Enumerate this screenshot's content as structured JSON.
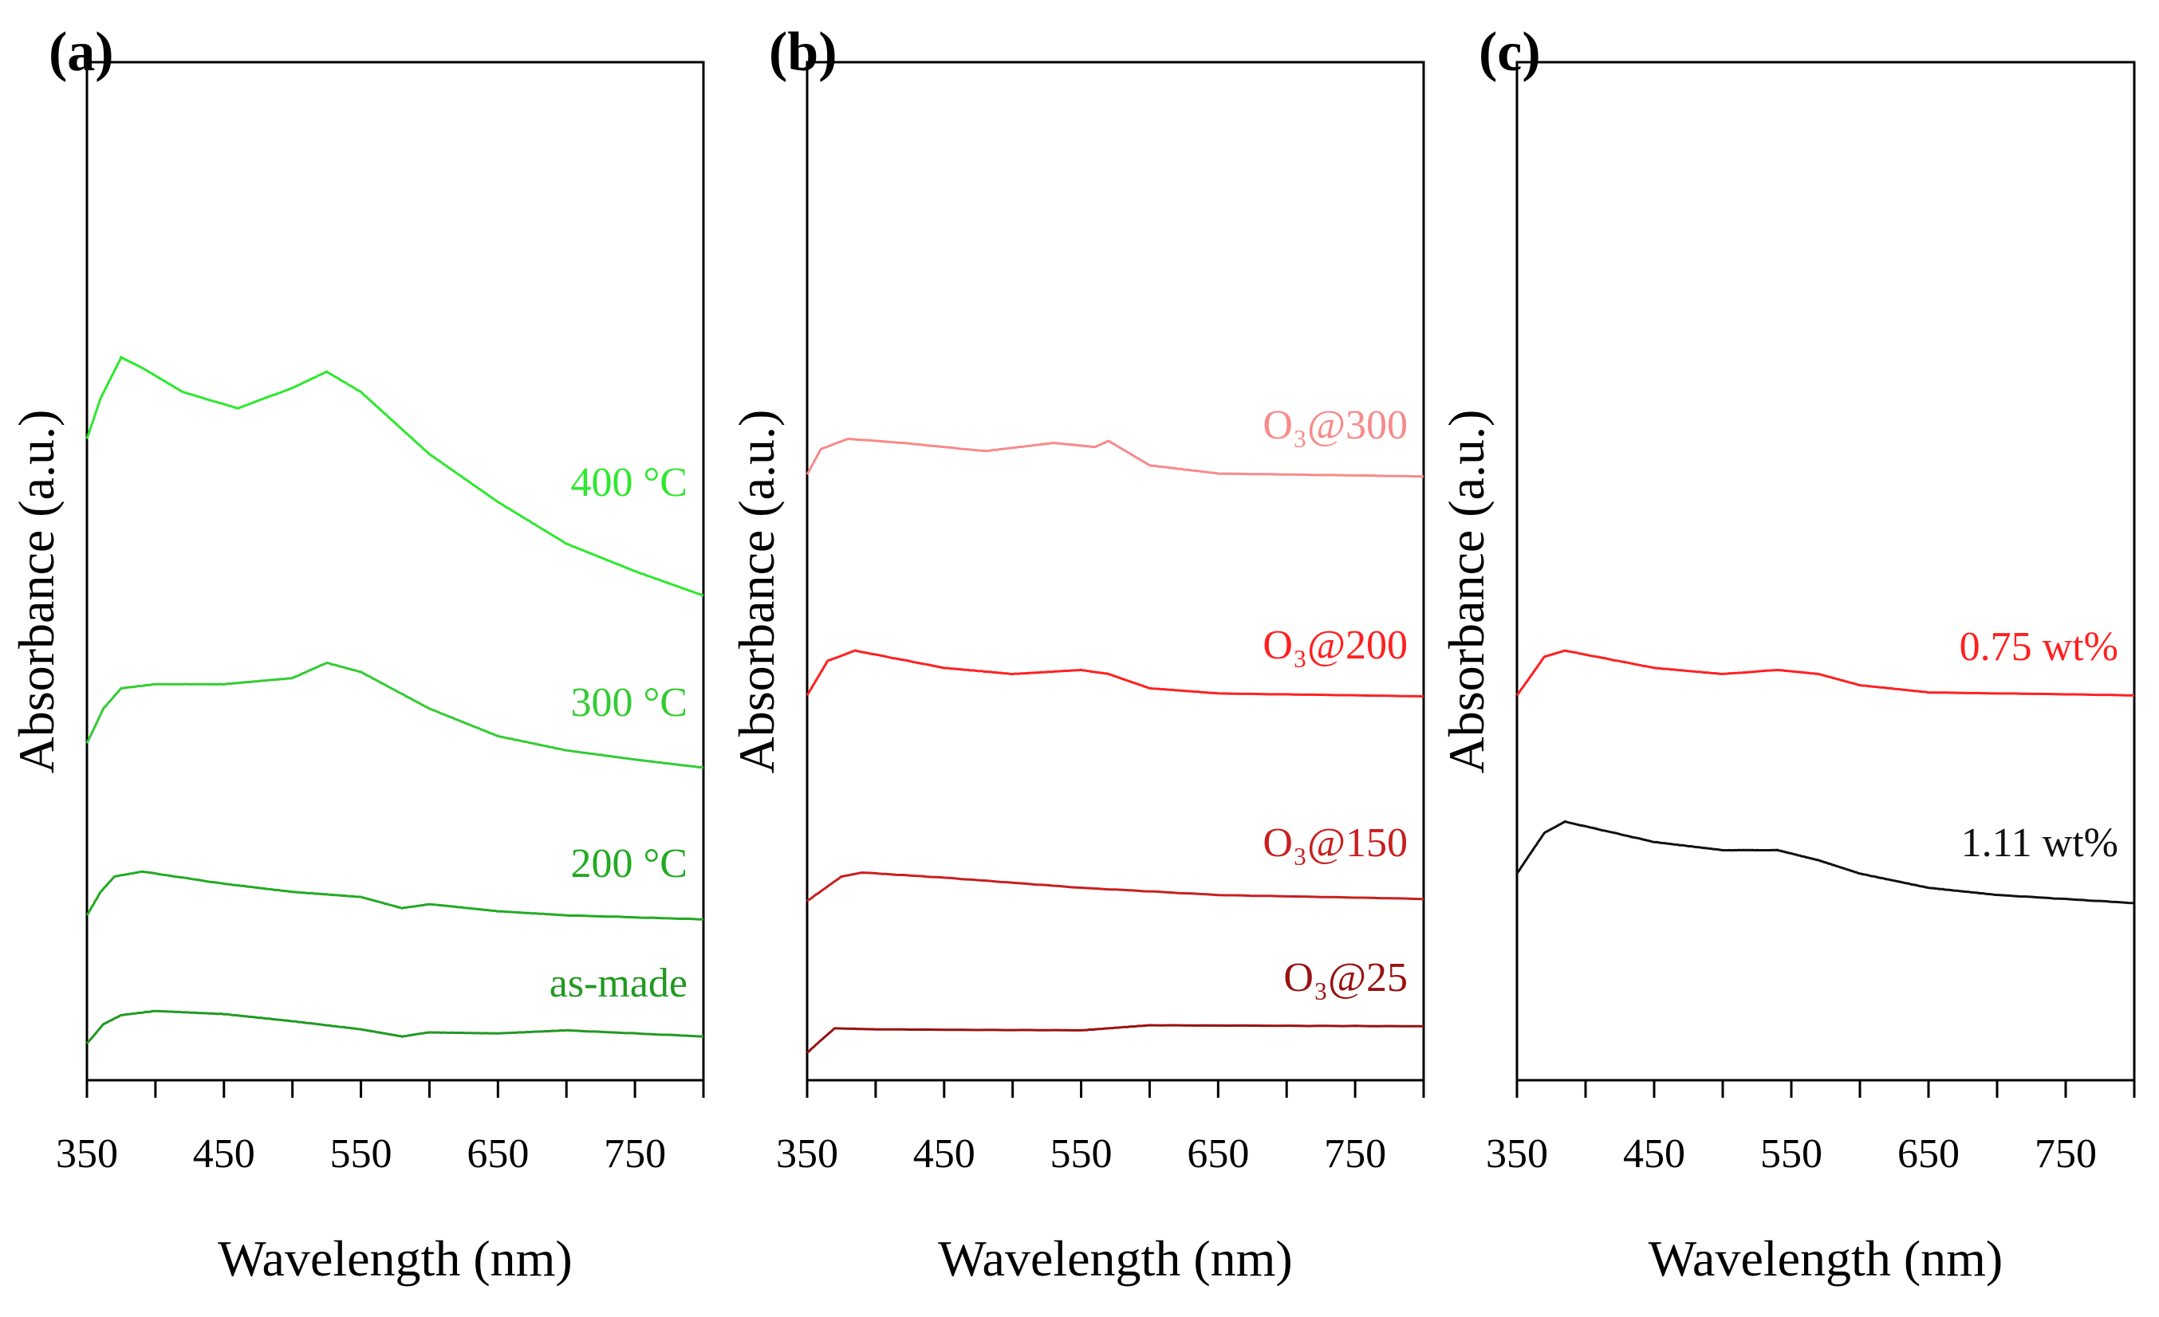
{
  "chart_data": [
    {
      "type": "line",
      "panel_label": "(a)",
      "xlabel": "Wavelength (nm)",
      "ylabel": "Absorbance (a.u.)",
      "xlim": [
        350,
        800
      ],
      "ylim": [
        0,
        100
      ],
      "xticks": [
        350,
        450,
        550,
        650,
        750
      ],
      "yticks_shown": false,
      "series": [
        {
          "name": "400 °C",
          "color": "#2ee82e",
          "x": [
            350,
            360,
            375,
            390,
            420,
            460,
            500,
            525,
            550,
            600,
            650,
            700,
            750,
            800
          ],
          "y": [
            63,
            67,
            71,
            70,
            67.6,
            66,
            68,
            69.6,
            67.6,
            61.5,
            56.8,
            52.7,
            50,
            47.6
          ]
        },
        {
          "name": "300 °C",
          "color": "#33cc33",
          "x": [
            350,
            362,
            375,
            400,
            450,
            500,
            525,
            550,
            600,
            650,
            700,
            750,
            800
          ],
          "y": [
            33.1,
            36.5,
            38.5,
            38.9,
            38.9,
            39.5,
            41,
            40.1,
            36.5,
            33.8,
            32.4,
            31.5,
            30.7
          ]
        },
        {
          "name": "200 °C",
          "color": "#22aa22",
          "x": [
            350,
            360,
            370,
            390,
            450,
            500,
            550,
            580,
            600,
            650,
            700,
            800
          ],
          "y": [
            16.2,
            18.5,
            20,
            20.5,
            19.3,
            18.5,
            18,
            16.9,
            17.3,
            16.6,
            16.2,
            15.8
          ]
        },
        {
          "name": "as-made",
          "color": "#229922",
          "x": [
            350,
            362,
            375,
            400,
            450,
            500,
            550,
            580,
            600,
            650,
            700,
            800
          ],
          "y": [
            3.6,
            5.5,
            6.4,
            6.8,
            6.5,
            5.8,
            5,
            4.3,
            4.7,
            4.6,
            4.9,
            4.3
          ]
        }
      ]
    },
    {
      "type": "line",
      "panel_label": "(b)",
      "xlabel": "Wavelength (nm)",
      "ylabel": "Absorbance (a.u.)",
      "xlim": [
        350,
        800
      ],
      "ylim": [
        0,
        100
      ],
      "xticks": [
        350,
        450,
        550,
        650,
        750
      ],
      "yticks_shown": false,
      "series": [
        {
          "name": "O₃@300",
          "color": "#f88a8a",
          "x": [
            350,
            360,
            380,
            420,
            480,
            530,
            560,
            570,
            600,
            650,
            800
          ],
          "y": [
            59.5,
            62,
            63,
            62.6,
            61.8,
            62.6,
            62.2,
            62.8,
            60.4,
            59.6,
            59.3
          ]
        },
        {
          "name": "O₃@200",
          "color": "#ff2020",
          "x": [
            350,
            365,
            385,
            450,
            500,
            550,
            570,
            600,
            650,
            800
          ],
          "y": [
            37.8,
            41.2,
            42.2,
            40.5,
            39.9,
            40.3,
            39.9,
            38.5,
            38,
            37.7
          ]
        },
        {
          "name": "O₃@150",
          "color": "#c82020",
          "x": [
            350,
            375,
            390,
            450,
            550,
            650,
            800
          ],
          "y": [
            17.6,
            20,
            20.4,
            19.9,
            18.9,
            18.2,
            17.8
          ]
        },
        {
          "name": "O₃@25",
          "color": "#991111",
          "x": [
            350,
            370,
            400,
            550,
            600,
            800
          ],
          "y": [
            2.7,
            5.1,
            5,
            4.9,
            5.4,
            5.3
          ]
        }
      ]
    },
    {
      "type": "line",
      "panel_label": "(c)",
      "xlabel": "Wavelength (nm)",
      "ylabel": "Absorbance (a.u.)",
      "xlim": [
        350,
        800
      ],
      "ylim": [
        0,
        100
      ],
      "xticks": [
        350,
        450,
        550,
        650,
        750
      ],
      "yticks_shown": false,
      "series": [
        {
          "name": "0.75 wt%",
          "color": "#ff2020",
          "x": [
            350,
            370,
            385,
            450,
            500,
            540,
            570,
            600,
            650,
            800
          ],
          "y": [
            37.8,
            41.6,
            42.2,
            40.5,
            39.9,
            40.3,
            39.9,
            38.8,
            38.1,
            37.8
          ]
        },
        {
          "name": "1.11 wt%",
          "color": "#111111",
          "x": [
            350,
            370,
            385,
            450,
            500,
            540,
            570,
            600,
            650,
            700,
            800
          ],
          "y": [
            20.3,
            24.3,
            25.4,
            23.4,
            22.6,
            22.6,
            21.6,
            20.3,
            18.9,
            18.2,
            17.4
          ]
        }
      ]
    }
  ]
}
